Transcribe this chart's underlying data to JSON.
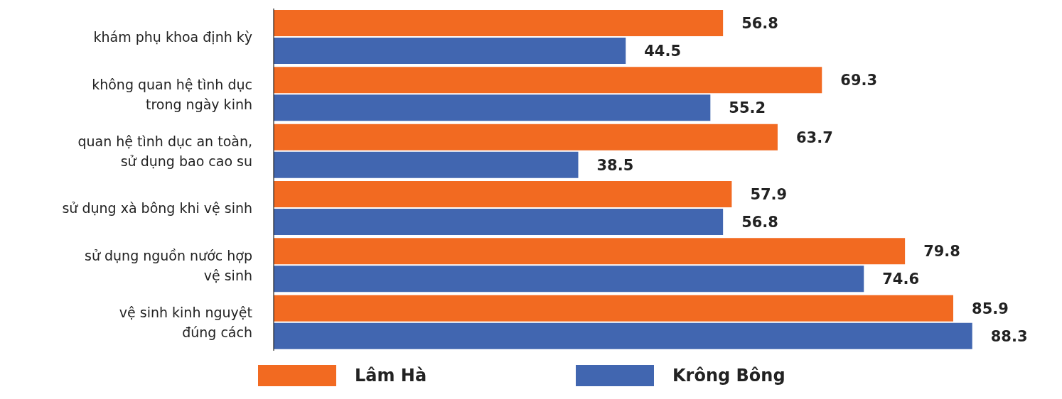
{
  "chart_data": {
    "type": "bar",
    "orientation": "horizontal",
    "categories": [
      "khám phụ khoa định kỳ",
      "không quan hệ tình dục\ntrong ngày kinh",
      "quan hệ tình dục an toàn,\nsử dụng bao cao su",
      "sử dụng xà bông khi vệ sinh",
      "sử dụng nguồn nước hợp\nvệ sinh",
      "vệ sinh kinh nguyệt\nđúng cách"
    ],
    "series": [
      {
        "name": "Lâm Hà",
        "color": "#f26a21",
        "values": [
          56.8,
          69.3,
          63.7,
          57.9,
          79.8,
          85.9
        ]
      },
      {
        "name": "Krông Bông",
        "color": "#4166b0",
        "values": [
          44.5,
          55.2,
          38.5,
          56.8,
          74.6,
          88.3
        ]
      }
    ],
    "data_labels": true,
    "legend": "bottom",
    "grid": false
  }
}
